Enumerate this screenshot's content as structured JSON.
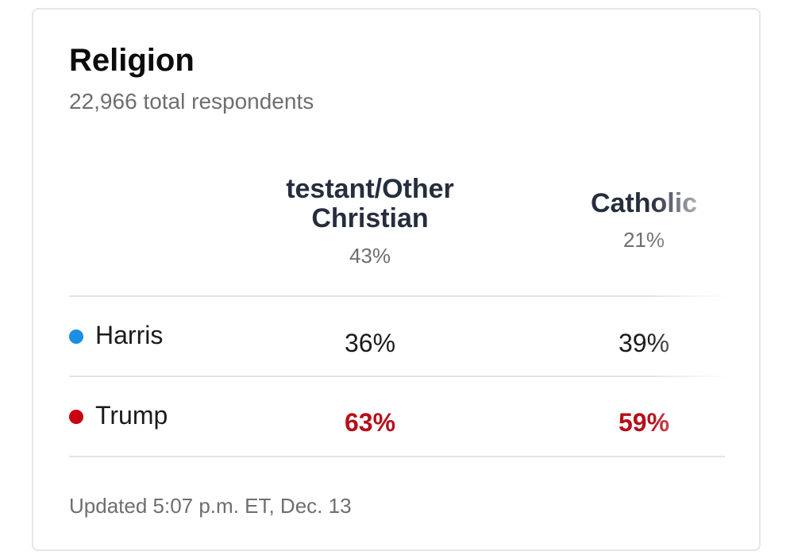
{
  "header": {
    "title": "Religion",
    "subtitle": "22,966 total respondents"
  },
  "table": {
    "columns": [
      {
        "label": "testant/Other Christian",
        "share": "43%"
      },
      {
        "label": "Catholic",
        "share": "21%"
      }
    ],
    "rows": [
      {
        "candidate": "Harris",
        "color": "#1a8fe3",
        "values": [
          "36%",
          "39%"
        ]
      },
      {
        "candidate": "Trump",
        "color": "#c8000f",
        "values": [
          "63%",
          "59%"
        ]
      }
    ]
  },
  "footer": "Updated 5:07 p.m. ET, Dec. 13"
}
